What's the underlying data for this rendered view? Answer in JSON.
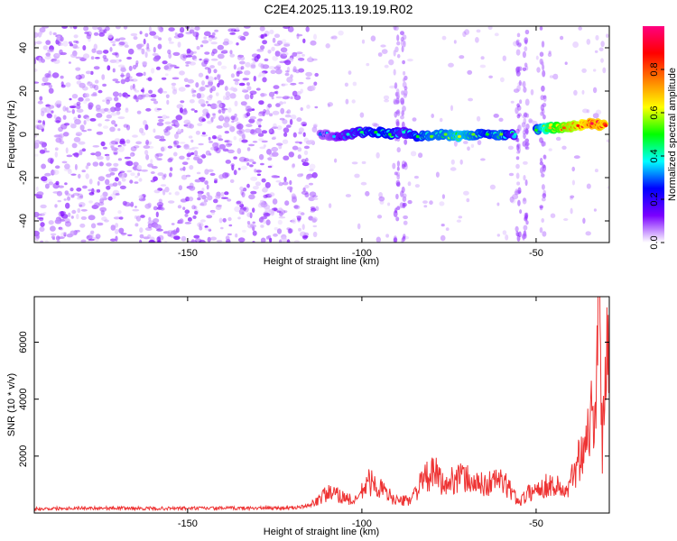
{
  "title": "C2E4.2025.113.19.19.R02",
  "chart_data": [
    {
      "type": "heatmap",
      "xlabel": "Height of straight line (km)",
      "ylabel": "Frequency (Hz)",
      "xlim": [
        -194,
        -29
      ],
      "ylim": [
        -50,
        50
      ],
      "x_ticks": [
        -150,
        -100,
        -50
      ],
      "y_ticks": [
        -40,
        -20,
        0,
        20,
        40
      ],
      "colorbar": {
        "label": "Normalized spectral amplitude",
        "range": [
          0,
          1
        ],
        "ticks": [
          0.0,
          0.2,
          0.4,
          0.6,
          0.8
        ],
        "tick_labels": [
          "0.0",
          "0.2",
          "0.4",
          "0.6",
          "0.8"
        ],
        "colors": [
          "#ffffff",
          "#7a00ff",
          "#0000ff",
          "#00ffff",
          "#00ff00",
          "#ffff00",
          "#ff8000",
          "#ff0000",
          "#ff0080"
        ]
      },
      "noise_region": {
        "x_range": [
          -194,
          -113
        ],
        "amplitude_range": [
          0.02,
          0.12
        ]
      },
      "ridge": [
        {
          "x": -112,
          "y": 0,
          "amplitude": 0.3
        },
        {
          "x": -108,
          "y": -1,
          "amplitude": 0.35
        },
        {
          "x": -104,
          "y": 0,
          "amplitude": 0.4
        },
        {
          "x": -100,
          "y": 1,
          "amplitude": 0.45
        },
        {
          "x": -96,
          "y": 1,
          "amplitude": 0.5
        },
        {
          "x": -92,
          "y": 0,
          "amplitude": 0.5
        },
        {
          "x": -88,
          "y": 1,
          "amplitude": 0.4
        },
        {
          "x": -84,
          "y": -1,
          "amplitude": 0.5
        },
        {
          "x": -80,
          "y": -1,
          "amplitude": 0.55
        },
        {
          "x": -76,
          "y": 0,
          "amplitude": 0.55
        },
        {
          "x": -72,
          "y": -1,
          "amplitude": 0.6
        },
        {
          "x": -68,
          "y": 0,
          "amplitude": 0.55
        },
        {
          "x": -64,
          "y": 0,
          "amplitude": 0.5
        },
        {
          "x": -60,
          "y": 0,
          "amplitude": 0.55
        },
        {
          "x": -56,
          "y": 0,
          "amplitude": 0.4
        },
        {
          "x": -50,
          "y": 2,
          "amplitude": 0.5
        },
        {
          "x": -46,
          "y": 3,
          "amplitude": 0.7
        },
        {
          "x": -42,
          "y": 3,
          "amplitude": 0.8
        },
        {
          "x": -38,
          "y": 4,
          "amplitude": 0.85
        },
        {
          "x": -34,
          "y": 5,
          "amplitude": 0.95
        },
        {
          "x": -30,
          "y": 4,
          "amplitude": 0.9
        }
      ],
      "vertical_streaks_x": [
        -90,
        -88,
        -55,
        -53,
        -48
      ]
    },
    {
      "type": "line",
      "xlabel": "Height of straight line (km)",
      "ylabel": "SNR (10 * v/v)",
      "xlim": [
        -194,
        -29
      ],
      "ylim": [
        0,
        7600
      ],
      "x_ticks": [
        -150,
        -100,
        -50
      ],
      "y_ticks": [
        2000,
        4000,
        6000
      ],
      "color": "#ee3333",
      "x": [
        -194,
        -180,
        -160,
        -140,
        -120,
        -115,
        -110,
        -106,
        -102,
        -98,
        -95,
        -92,
        -89,
        -86,
        -82,
        -79,
        -76,
        -73,
        -70,
        -67,
        -64,
        -61,
        -58,
        -55,
        -52,
        -49,
        -46,
        -43,
        -41,
        -39,
        -37,
        -35,
        -33,
        -32,
        -31,
        -30,
        -29
      ],
      "y": [
        150,
        180,
        160,
        170,
        180,
        250,
        700,
        600,
        400,
        1100,
        900,
        600,
        400,
        500,
        1200,
        1400,
        900,
        1300,
        1200,
        1000,
        1000,
        1200,
        900,
        400,
        700,
        900,
        1000,
        900,
        700,
        1500,
        2200,
        3000,
        4000,
        7600,
        2000,
        6400,
        6000
      ]
    }
  ]
}
